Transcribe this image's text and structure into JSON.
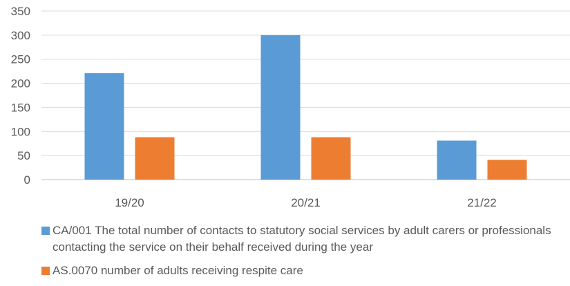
{
  "chart_data": {
    "type": "bar",
    "title": "",
    "xlabel": "",
    "ylabel": "",
    "categories": [
      "19/20",
      "20/21",
      "21/22"
    ],
    "ylim": [
      0,
      350
    ],
    "yticks": [
      0,
      50,
      100,
      150,
      200,
      250,
      300,
      350
    ],
    "grid": true,
    "legend_position": "bottom",
    "series": [
      {
        "name": "CA/001 The total number of contacts to statutory social services by adult carers or professionals contacting the service on their behalf received during the year",
        "color": "#5b9bd5",
        "values": [
          221,
          300,
          81
        ]
      },
      {
        "name": "AS.0070 number of adults receiving respite care",
        "color": "#ed7d31",
        "values": [
          88,
          88,
          41
        ]
      }
    ]
  }
}
